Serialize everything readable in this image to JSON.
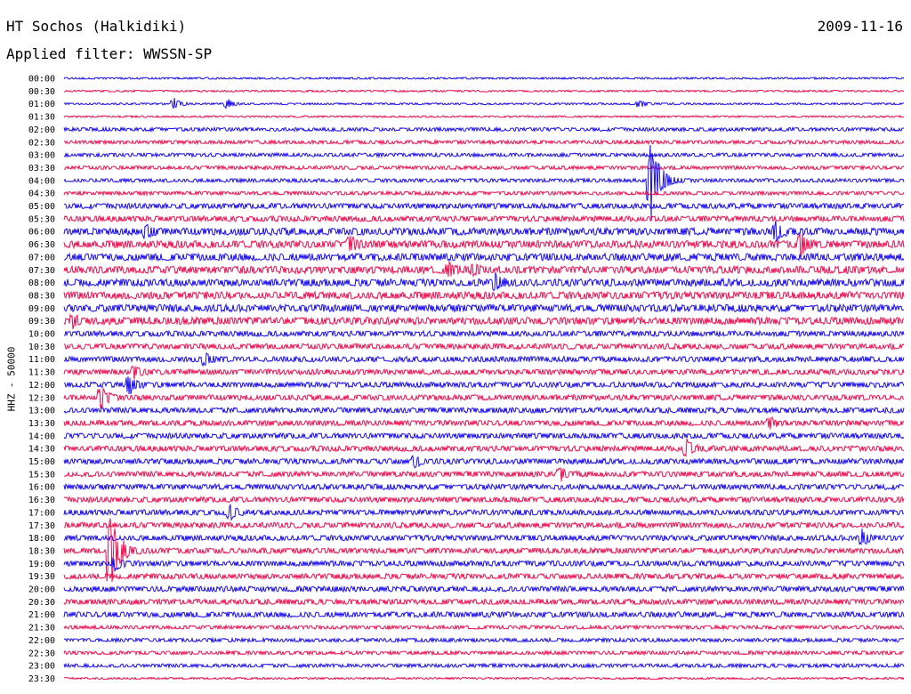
{
  "header": {
    "station": "HT Sochos (Halkidiki)",
    "date": "2009-11-16",
    "filter": "Applied filter: WWSSN-SP"
  },
  "chart_data": {
    "type": "line",
    "title": "HT Sochos (Halkidiki)",
    "subtitle": "Applied filter: WWSSN-SP",
    "ylabel": "HHZ - 50000",
    "xlabel": "",
    "colors": {
      "even": "#1a0df0",
      "odd": "#ee1050"
    },
    "rows": [
      "00:00",
      "00:30",
      "01:00",
      "01:30",
      "02:00",
      "02:30",
      "03:00",
      "03:30",
      "04:00",
      "04:30",
      "05:00",
      "05:30",
      "06:00",
      "06:30",
      "07:00",
      "07:30",
      "08:00",
      "08:30",
      "09:00",
      "09:30",
      "10:00",
      "10:30",
      "11:00",
      "11:30",
      "12:00",
      "12:30",
      "13:00",
      "13:30",
      "14:00",
      "14:30",
      "15:00",
      "15:30",
      "16:00",
      "16:30",
      "17:00",
      "17:30",
      "18:00",
      "18:30",
      "19:00",
      "19:30",
      "20:00",
      "20:30",
      "21:00",
      "21:30",
      "22:00",
      "22:30",
      "23:00",
      "23:30"
    ],
    "noise_level": [
      1,
      1,
      1,
      1,
      2,
      2,
      2,
      2,
      2,
      2,
      3,
      3,
      4,
      4,
      4,
      4,
      4,
      4,
      4,
      4,
      3,
      3,
      3,
      3,
      3,
      3,
      3,
      3,
      3,
      3,
      3,
      3,
      3,
      3,
      3,
      3,
      3,
      3,
      3,
      3,
      3,
      3,
      3,
      2,
      2,
      2,
      2,
      1
    ],
    "events": [
      {
        "row": 2,
        "minute": 3.9,
        "amplitude": 8
      },
      {
        "row": 2,
        "minute": 5.8,
        "amplitude": 7
      },
      {
        "row": 2,
        "minute": 20.5,
        "amplitude": 6
      },
      {
        "row": 8,
        "minute": 20.9,
        "amplitude": 60
      },
      {
        "row": 12,
        "minute": 2.9,
        "amplitude": 9
      },
      {
        "row": 12,
        "minute": 25.4,
        "amplitude": 14
      },
      {
        "row": 13,
        "minute": 10.2,
        "amplitude": 9
      },
      {
        "row": 13,
        "minute": 26.3,
        "amplitude": 16
      },
      {
        "row": 15,
        "minute": 13.7,
        "amplitude": 8
      },
      {
        "row": 15,
        "minute": 14.6,
        "amplitude": 6
      },
      {
        "row": 16,
        "minute": 15.4,
        "amplitude": 10
      },
      {
        "row": 19,
        "minute": 0.3,
        "amplitude": 8
      },
      {
        "row": 22,
        "minute": 5.0,
        "amplitude": 8
      },
      {
        "row": 23,
        "minute": 2.5,
        "amplitude": 7
      },
      {
        "row": 24,
        "minute": 2.3,
        "amplitude": 14
      },
      {
        "row": 25,
        "minute": 1.3,
        "amplitude": 16
      },
      {
        "row": 27,
        "minute": 25.2,
        "amplitude": 8
      },
      {
        "row": 29,
        "minute": 22.2,
        "amplitude": 12
      },
      {
        "row": 30,
        "minute": 12.5,
        "amplitude": 9
      },
      {
        "row": 31,
        "minute": 17.7,
        "amplitude": 8
      },
      {
        "row": 34,
        "minute": 5.9,
        "amplitude": 9
      },
      {
        "row": 36,
        "minute": 28.5,
        "amplitude": 10
      },
      {
        "row": 37,
        "minute": 1.6,
        "amplitude": 55
      },
      {
        "row": 38,
        "minute": 1.8,
        "amplitude": 10
      }
    ]
  }
}
